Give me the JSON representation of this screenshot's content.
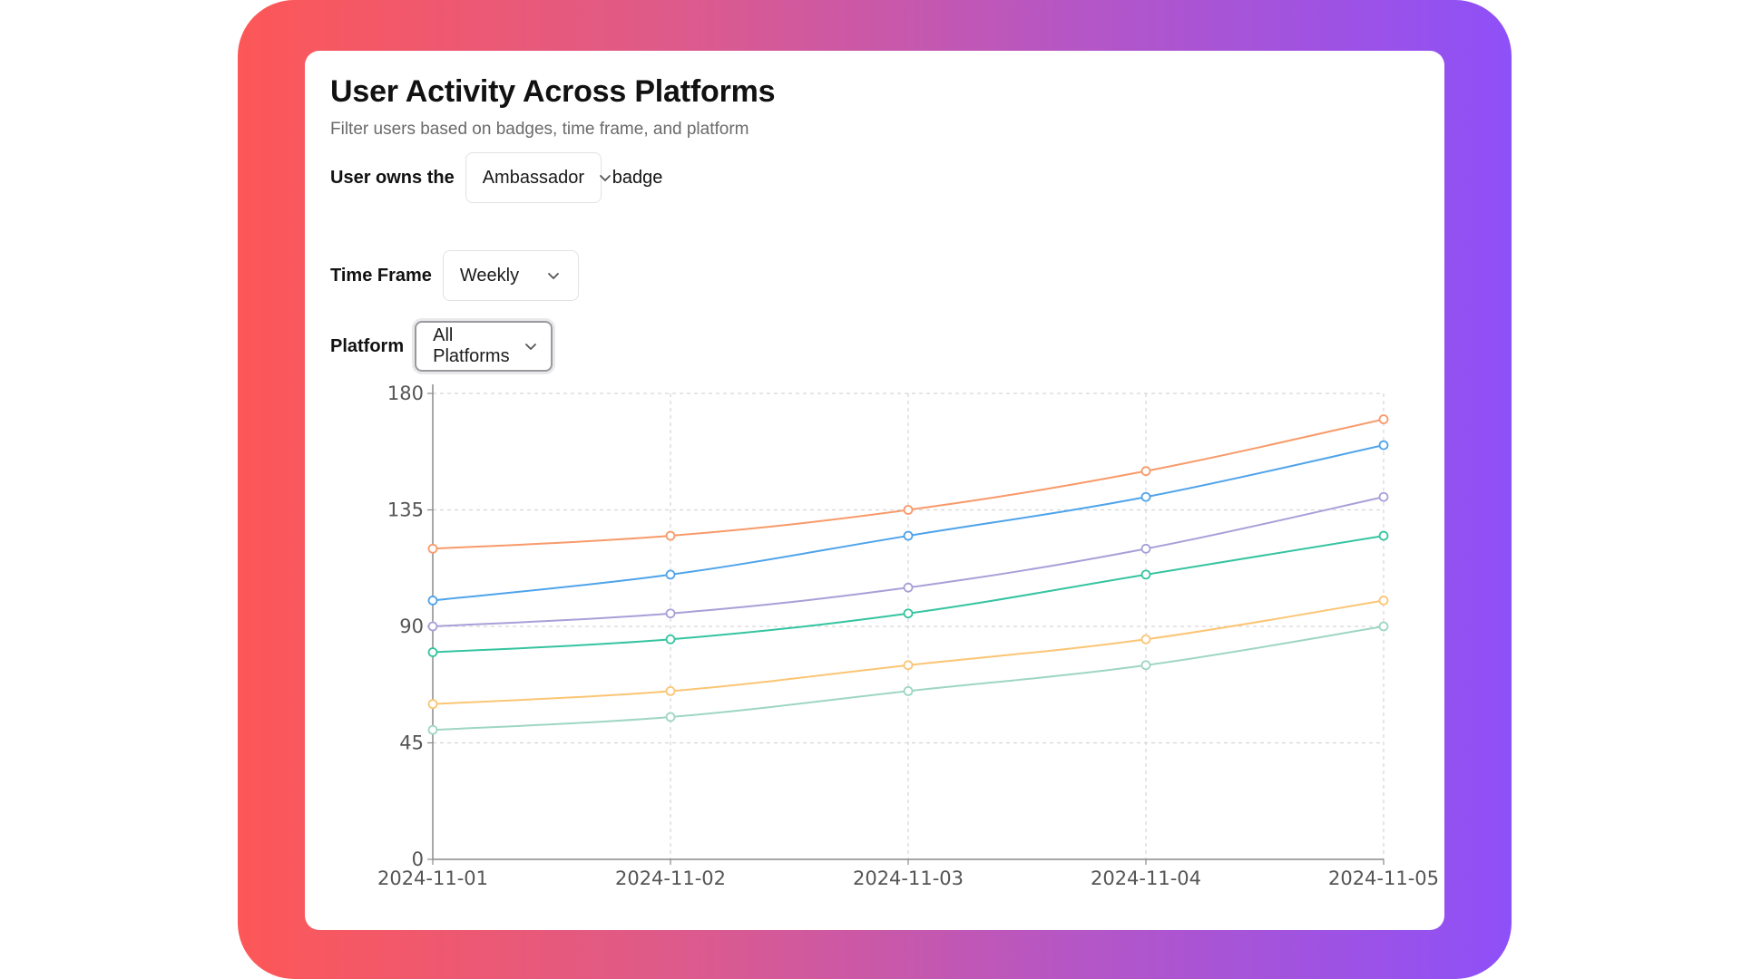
{
  "header": {
    "title": "User Activity Across Platforms",
    "subtitle": "Filter users based on badges, time frame, and platform"
  },
  "filters": {
    "badge": {
      "label": "User owns the",
      "value": "Ambassador",
      "suffix": "badge"
    },
    "timeframe": {
      "label": "Time Frame",
      "value": "Weekly"
    },
    "platform": {
      "label": "Platform",
      "value": "All Platforms"
    }
  },
  "chart_data": {
    "type": "line",
    "title": "",
    "xlabel": "",
    "ylabel": "",
    "x": [
      "2024-11-01",
      "2024-11-02",
      "2024-11-03",
      "2024-11-04",
      "2024-11-05"
    ],
    "ylim": [
      0,
      180
    ],
    "yticks": [
      0,
      45,
      90,
      135,
      180
    ],
    "grid": true,
    "legend": "none",
    "series": [
      {
        "name": "series-orange",
        "color": "#f89a6a",
        "values": [
          120,
          125,
          135,
          150,
          170
        ]
      },
      {
        "name": "series-blue",
        "color": "#4ea3ea",
        "values": [
          100,
          110,
          125,
          140,
          160
        ]
      },
      {
        "name": "series-lavender",
        "color": "#a7a0d8",
        "values": [
          90,
          95,
          105,
          120,
          140
        ]
      },
      {
        "name": "series-teal",
        "color": "#35c4a0",
        "values": [
          80,
          85,
          95,
          110,
          125
        ]
      },
      {
        "name": "series-yellow",
        "color": "#fbc574",
        "values": [
          60,
          65,
          75,
          85,
          100
        ]
      },
      {
        "name": "series-mint",
        "color": "#9ed6c2",
        "values": [
          50,
          55,
          65,
          75,
          90
        ]
      }
    ]
  }
}
